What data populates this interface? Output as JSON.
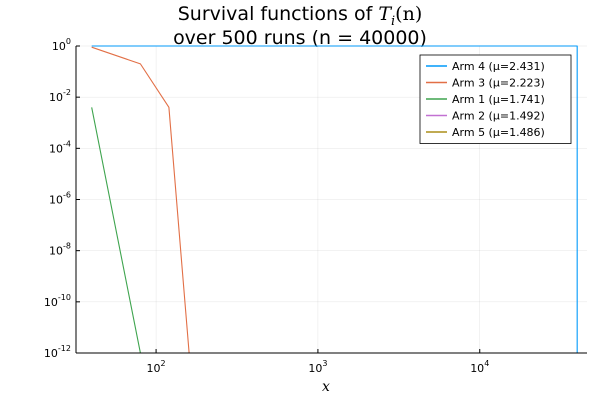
{
  "title": {
    "line1_prefix": "Survival functions of ",
    "line1_math": "T",
    "line1_math_sub": "i",
    "line1_math_suffix": "(n)",
    "line2": "over 500 runs (n = 40000)"
  },
  "chart_data": {
    "type": "line",
    "title": "Survival functions of T_i(n) over 500 runs (n = 40000)",
    "xlabel": "x",
    "ylabel": "",
    "xscale": "log10",
    "yscale": "log10",
    "xlim": [
      32,
      46000
    ],
    "ylim": [
      1e-12,
      1
    ],
    "grid": true,
    "legend_position": "top-right",
    "x_ticks": [
      {
        "value": 100,
        "base": "10",
        "exp": "2"
      },
      {
        "value": 1000,
        "base": "10",
        "exp": "3"
      },
      {
        "value": 10000,
        "base": "10",
        "exp": "4"
      }
    ],
    "y_ticks": [
      {
        "value": 1,
        "base": "10",
        "exp": "0"
      },
      {
        "value": 0.01,
        "base": "10",
        "exp": "-2"
      },
      {
        "value": 0.0001,
        "base": "10",
        "exp": "-4"
      },
      {
        "value": 1e-06,
        "base": "10",
        "exp": "-6"
      },
      {
        "value": 1e-08,
        "base": "10",
        "exp": "-8"
      },
      {
        "value": 1e-10,
        "base": "10",
        "exp": "-10"
      },
      {
        "value": 1e-12,
        "base": "10",
        "exp": "-12"
      }
    ],
    "series": [
      {
        "name": "Arm 4 (μ=2.431)",
        "color": "#009AFA",
        "x": [
          40,
          40000,
          40000
        ],
        "y": [
          1,
          1,
          1e-12
        ]
      },
      {
        "name": "Arm 3 (μ=2.223)",
        "color": "#E26F46",
        "x": [
          40,
          80,
          120,
          160,
          40000
        ],
        "y": [
          0.9,
          0.2,
          0.004,
          1e-12,
          1e-12
        ]
      },
      {
        "name": "Arm 1 (μ=1.741)",
        "color": "#3EA44E",
        "x": [
          40,
          80,
          40000
        ],
        "y": [
          0.004,
          1e-12,
          1e-12
        ]
      },
      {
        "name": "Arm 2 (μ=1.492)",
        "color": "#C271D2",
        "x": [
          40,
          40000
        ],
        "y": [
          1e-12,
          1e-12
        ]
      },
      {
        "name": "Arm 5 (μ=1.486)",
        "color": "#AC8E18",
        "x": [
          40,
          40000
        ],
        "y": [
          1e-12,
          1e-12
        ]
      }
    ]
  }
}
